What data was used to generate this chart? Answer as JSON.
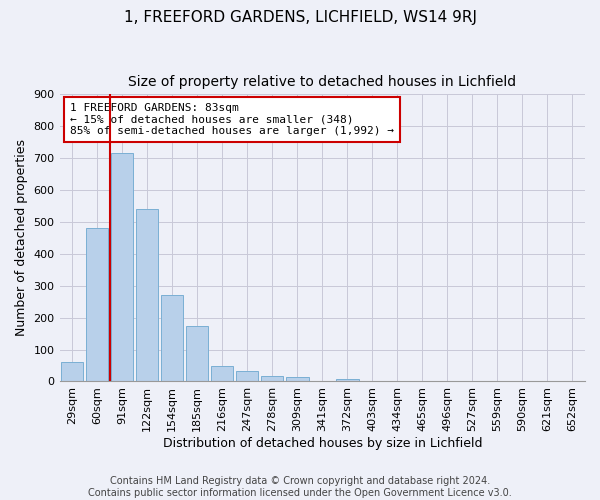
{
  "title_line1": "1, FREEFORD GARDENS, LICHFIELD, WS14 9RJ",
  "title_line2": "Size of property relative to detached houses in Lichfield",
  "xlabel": "Distribution of detached houses by size in Lichfield",
  "ylabel": "Number of detached properties",
  "footer_line1": "Contains HM Land Registry data © Crown copyright and database right 2024.",
  "footer_line2": "Contains public sector information licensed under the Open Government Licence v3.0.",
  "categories": [
    "29sqm",
    "60sqm",
    "91sqm",
    "122sqm",
    "154sqm",
    "185sqm",
    "216sqm",
    "247sqm",
    "278sqm",
    "309sqm",
    "341sqm",
    "372sqm",
    "403sqm",
    "434sqm",
    "465sqm",
    "496sqm",
    "527sqm",
    "559sqm",
    "590sqm",
    "621sqm",
    "652sqm"
  ],
  "values": [
    60,
    480,
    715,
    540,
    270,
    175,
    47,
    32,
    17,
    14,
    0,
    8,
    0,
    0,
    0,
    0,
    0,
    0,
    0,
    0,
    0
  ],
  "bar_color": "#b8d0ea",
  "bar_edge_color": "#7aafd4",
  "property_line_x": 2,
  "annotation_text_line1": "1 FREEFORD GARDENS: 83sqm",
  "annotation_text_line2": "← 15% of detached houses are smaller (348)",
  "annotation_text_line3": "85% of semi-detached houses are larger (1,992) →",
  "annotation_box_color": "#ffffff",
  "annotation_box_edge_color": "#cc0000",
  "vline_color": "#cc0000",
  "ylim": [
    0,
    900
  ],
  "yticks": [
    0,
    100,
    200,
    300,
    400,
    500,
    600,
    700,
    800,
    900
  ],
  "grid_color": "#c8c8d8",
  "bg_color": "#eef0f8",
  "title1_fontsize": 11,
  "title2_fontsize": 10,
  "axis_label_fontsize": 9,
  "tick_fontsize": 8,
  "footer_fontsize": 7
}
